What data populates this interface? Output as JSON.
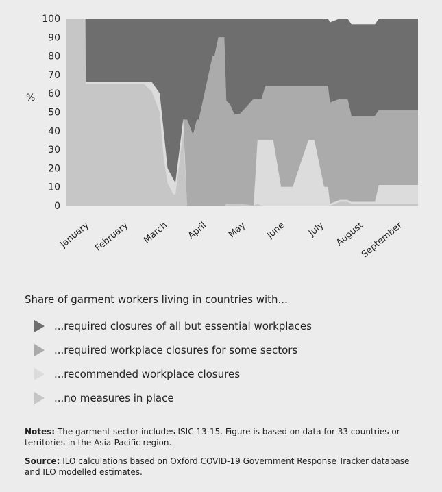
{
  "chart_data": {
    "type": "area",
    "ylabel": "%",
    "ylim": [
      0,
      100
    ],
    "yticks": [
      0,
      10,
      20,
      30,
      40,
      50,
      60,
      70,
      80,
      90,
      100
    ],
    "month_labels": [
      "January",
      "February",
      "March",
      "April",
      "May",
      "June",
      "July",
      "August",
      "September"
    ],
    "x": [
      0,
      0.5,
      0.51,
      2.0,
      2.2,
      2.4,
      2.5,
      2.6,
      2.75,
      2.8,
      3.0,
      3.1,
      3.25,
      3.35,
      3.4,
      3.75,
      3.8,
      3.9,
      4.05,
      4.1,
      4.2,
      4.3,
      4.45,
      4.8,
      4.9,
      5.0,
      5.1,
      5.3,
      5.5,
      5.7,
      5.8,
      6.2,
      6.25,
      6.35,
      6.6,
      6.7,
      6.75,
      7.0,
      7.2,
      7.3,
      7.4,
      7.45,
      7.7,
      7.9,
      8.0,
      8.6
    ],
    "series": [
      {
        "name": "required closures of all but essential workplaces",
        "color": "#6e6e6e",
        "values": [
          0,
          0,
          34,
          34,
          34,
          40,
          60,
          80,
          86,
          88,
          54,
          54,
          62,
          54,
          54,
          20,
          20,
          10,
          10,
          44,
          46,
          51,
          51,
          43,
          43,
          43,
          36,
          36,
          36,
          36,
          36,
          36,
          36,
          36,
          36,
          36,
          43,
          43,
          43,
          49,
          49,
          49,
          49,
          49,
          49,
          49
        ]
      },
      {
        "name": "required workplace closures for some sectors",
        "color": "#ababab",
        "values": [
          0,
          0,
          0,
          0,
          0,
          0,
          0,
          0,
          0,
          0,
          0,
          46,
          38,
          46,
          46,
          80,
          80,
          90,
          90,
          55,
          53,
          48,
          48,
          57,
          22,
          22,
          29,
          29,
          54,
          54,
          54,
          29,
          29,
          29,
          54,
          54,
          54,
          54,
          54,
          46,
          46,
          46,
          46,
          46,
          40,
          40
        ]
      },
      {
        "name": "recommended workplace closures",
        "color": "#dcdcdc",
        "values": [
          0,
          0,
          1,
          1,
          5,
          10,
          14,
          8,
          8,
          6,
          6,
          0,
          0,
          0,
          0,
          0,
          0,
          0,
          0,
          0,
          0,
          0,
          0,
          0,
          34,
          35,
          35,
          35,
          10,
          10,
          10,
          35,
          35,
          35,
          10,
          10,
          1,
          1,
          1,
          1,
          1,
          1,
          1,
          1,
          10,
          10
        ]
      },
      {
        "name": "no measures in place",
        "color": "#c6c6c6",
        "values": [
          100,
          100,
          65,
          65,
          61,
          50,
          26,
          12,
          6,
          6,
          40,
          0,
          0,
          0,
          0,
          0,
          0,
          0,
          0,
          1,
          1,
          1,
          1,
          0,
          1,
          0,
          0,
          0,
          0,
          0,
          0,
          0,
          0,
          0,
          0,
          0,
          0,
          2,
          2,
          1,
          1,
          1,
          1,
          1,
          1,
          1
        ]
      }
    ]
  },
  "legend": {
    "title": "Share of garment workers living in countries with...",
    "items": [
      {
        "label": "...required closures of all but essential workplaces",
        "color": "#6e6e6e"
      },
      {
        "label": "...required workplace closures for some sectors",
        "color": "#ababab"
      },
      {
        "label": "...recommended workplace closures",
        "color": "#dcdcdc"
      },
      {
        "label": "...no measures in place",
        "color": "#c6c6c6"
      }
    ]
  },
  "notes": {
    "label": "Notes:",
    "text": " The garment sector includes ISIC 13-15. Figure is based on data for 33 countries or territories in the Asia-Pacific region."
  },
  "source": {
    "label": "Source:",
    "text": " ILO calculations based on Oxford COVID-19 Government Response Tracker database and ILO modelled estimates."
  }
}
